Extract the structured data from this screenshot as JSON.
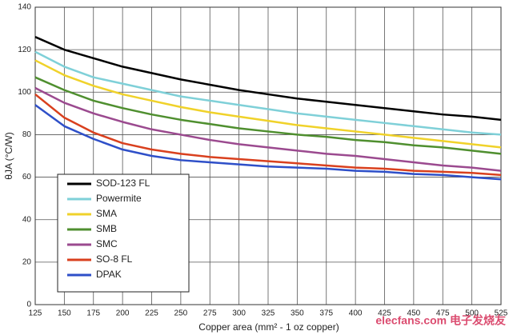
{
  "chart_data": {
    "type": "line",
    "x_label": "Copper area (mm² - 1 oz copper)",
    "y_label": "θJA (°C/W)",
    "watermark": "elecfans.com 电子发烧友",
    "x": [
      125,
      150,
      175,
      200,
      225,
      250,
      275,
      300,
      325,
      350,
      375,
      400,
      425,
      450,
      475,
      500,
      525
    ],
    "series": [
      {
        "name": "SOD-123 FL",
        "color": "#000000",
        "values": [
          126,
          120,
          116,
          112,
          109,
          106,
          103.5,
          101,
          99,
          97,
          95.5,
          94,
          92.5,
          91,
          89.5,
          88.5,
          87
        ]
      },
      {
        "name": "Powermite",
        "color": "#7fd0d8",
        "values": [
          119,
          112,
          107,
          104,
          101,
          98,
          96,
          94,
          92,
          90,
          88.5,
          87,
          85.5,
          84,
          82.5,
          81,
          80
        ]
      },
      {
        "name": "SMA",
        "color": "#f0d22a",
        "values": [
          115,
          108,
          103,
          99,
          96,
          93,
          90.5,
          88.5,
          86.5,
          84.5,
          83,
          81.5,
          80,
          78.5,
          77,
          75.5,
          74
        ]
      },
      {
        "name": "SMB",
        "color": "#4f8f2f",
        "values": [
          107,
          101,
          96,
          92.5,
          89.5,
          87,
          85,
          83,
          81.5,
          80,
          79,
          77.5,
          76.5,
          75,
          74,
          72.5,
          71
        ]
      },
      {
        "name": "SMC",
        "color": "#9b4a8f",
        "values": [
          102,
          95,
          90,
          86,
          82.5,
          80,
          77.5,
          75.5,
          74,
          72.5,
          71,
          70,
          68.5,
          67,
          65.5,
          64.5,
          63
        ]
      },
      {
        "name": "SO-8 FL",
        "color": "#d9401e",
        "values": [
          99,
          88,
          81,
          76,
          73,
          71,
          69.5,
          68.5,
          67.5,
          66.5,
          65.5,
          64.5,
          64,
          63,
          62.5,
          62,
          61
        ]
      },
      {
        "name": "DPAK",
        "color": "#2e4fc8",
        "values": [
          94,
          84,
          78,
          73,
          70,
          68,
          67,
          66,
          65,
          64.5,
          64,
          63,
          62.5,
          61.5,
          61,
          60,
          59
        ]
      }
    ],
    "xlim": [
      125,
      525
    ],
    "xticks": [
      125,
      150,
      175,
      200,
      225,
      250,
      275,
      300,
      325,
      350,
      375,
      400,
      425,
      450,
      475,
      500,
      525
    ],
    "ylim": [
      0,
      140
    ],
    "yticks": [
      0,
      20,
      40,
      60,
      80,
      100,
      120,
      140
    ],
    "grid": true,
    "legend": "lower left"
  }
}
